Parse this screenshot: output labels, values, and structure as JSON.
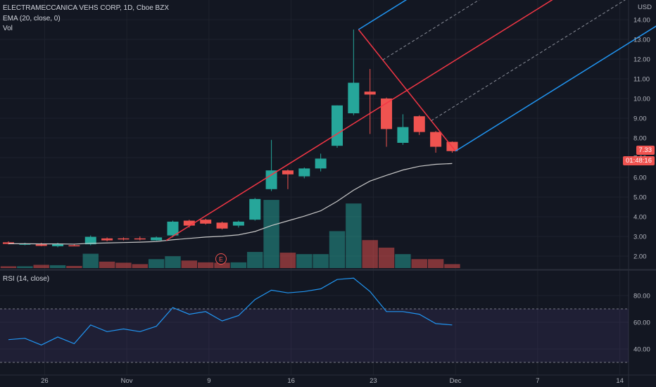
{
  "legend": {
    "title": "ELECTRAMECCANICA VEHS CORP, 1D, Cboe BZX",
    "ema": "EMA (20, close, 0)",
    "vol": "Vol",
    "rsi": "RSI (14, close)"
  },
  "axis": {
    "currency": "USD",
    "price_ticks": [
      "14.00",
      "13.00",
      "12.00",
      "11.00",
      "10.00",
      "9.00",
      "8.00",
      "7.00",
      "6.00",
      "5.00",
      "4.00",
      "3.00",
      "2.00"
    ],
    "rsi_ticks": [
      "80.00",
      "60.00",
      "40.00"
    ],
    "x_ticks": [
      "26",
      "Nov",
      "9",
      "16",
      "23",
      "Dec",
      "7",
      "14"
    ]
  },
  "tags": {
    "last_price": "7.33",
    "countdown": "01:48:16"
  },
  "earnings_marker": "E",
  "colors": {
    "up": "#26a69a",
    "down": "#ef5350",
    "ema": "#c8c8c8",
    "rsi": "#2196f3",
    "pitch_median": "#f23645",
    "pitch_outer": "#2196f3",
    "bg": "#131722"
  },
  "chart_data": {
    "type": "candlestick",
    "candles": [
      {
        "o": 2.7,
        "h": 2.75,
        "l": 2.6,
        "c": 2.62,
        "v": 0.25
      },
      {
        "o": 2.62,
        "h": 2.68,
        "l": 2.55,
        "c": 2.63,
        "v": 0.25
      },
      {
        "o": 2.6,
        "h": 2.68,
        "l": 2.5,
        "c": 2.52,
        "v": 0.45
      },
      {
        "o": 2.5,
        "h": 2.68,
        "l": 2.45,
        "c": 2.63,
        "v": 0.4
      },
      {
        "o": 2.55,
        "h": 2.6,
        "l": 2.5,
        "c": 2.52,
        "v": 0.3
      },
      {
        "o": 2.6,
        "h": 3.05,
        "l": 2.55,
        "c": 2.98,
        "v": 2.0
      },
      {
        "o": 2.9,
        "h": 2.95,
        "l": 2.75,
        "c": 2.8,
        "v": 0.9
      },
      {
        "o": 2.9,
        "h": 2.95,
        "l": 2.8,
        "c": 2.85,
        "v": 0.75
      },
      {
        "o": 2.9,
        "h": 3.0,
        "l": 2.8,
        "c": 2.85,
        "v": 0.55
      },
      {
        "o": 2.8,
        "h": 3.0,
        "l": 2.78,
        "c": 2.95,
        "v": 1.25
      },
      {
        "o": 3.05,
        "h": 3.8,
        "l": 2.95,
        "c": 3.75,
        "v": 1.65
      },
      {
        "o": 3.8,
        "h": 3.85,
        "l": 3.45,
        "c": 3.55,
        "v": 1.05
      },
      {
        "o": 3.85,
        "h": 3.9,
        "l": 3.6,
        "c": 3.65,
        "v": 0.8
      },
      {
        "o": 3.7,
        "h": 3.75,
        "l": 3.35,
        "c": 3.4,
        "v": 0.75
      },
      {
        "o": 3.55,
        "h": 3.8,
        "l": 3.45,
        "c": 3.75,
        "v": 0.8
      },
      {
        "o": 3.85,
        "h": 4.95,
        "l": 3.8,
        "c": 4.9,
        "v": 2.25
      },
      {
        "o": 5.4,
        "h": 7.9,
        "l": 5.3,
        "c": 6.35,
        "v": 9.5
      },
      {
        "o": 6.35,
        "h": 6.4,
        "l": 5.4,
        "c": 6.15,
        "v": 2.15
      },
      {
        "o": 6.05,
        "h": 6.5,
        "l": 5.95,
        "c": 6.45,
        "v": 1.95
      },
      {
        "o": 6.45,
        "h": 7.2,
        "l": 6.3,
        "c": 6.95,
        "v": 1.95
      },
      {
        "o": 7.6,
        "h": 9.65,
        "l": 7.5,
        "c": 9.65,
        "v": 5.15
      },
      {
        "o": 9.25,
        "h": 13.5,
        "l": 9.15,
        "c": 10.8,
        "v": 9.0
      },
      {
        "o": 10.35,
        "h": 11.5,
        "l": 8.2,
        "c": 10.2,
        "v": 3.9
      },
      {
        "o": 10.0,
        "h": 10.05,
        "l": 7.55,
        "c": 8.45,
        "v": 2.85
      },
      {
        "o": 7.75,
        "h": 9.2,
        "l": 7.65,
        "c": 8.55,
        "v": 1.95
      },
      {
        "o": 9.1,
        "h": 9.15,
        "l": 8.15,
        "c": 8.3,
        "v": 1.25
      },
      {
        "o": 8.3,
        "h": 8.35,
        "l": 7.25,
        "c": 7.55,
        "v": 1.25
      },
      {
        "o": 7.8,
        "h": 7.82,
        "l": 7.25,
        "c": 7.33,
        "v": 0.55
      }
    ],
    "ema20": [
      2.63,
      2.63,
      2.62,
      2.62,
      2.61,
      2.65,
      2.67,
      2.69,
      2.71,
      2.74,
      2.83,
      2.9,
      2.97,
      3.01,
      3.08,
      3.25,
      3.55,
      3.79,
      4.03,
      4.3,
      4.78,
      5.35,
      5.81,
      6.1,
      6.37,
      6.56,
      6.66,
      6.7
    ],
    "rsi": [
      47,
      48,
      43,
      49,
      44,
      58,
      53,
      55,
      53,
      57,
      71,
      66,
      68,
      61,
      65,
      77,
      84,
      82,
      83,
      85,
      92,
      93,
      83,
      68,
      68,
      66,
      59,
      58
    ],
    "price_range": [
      1.45,
      14.6
    ],
    "rsi_levels": [
      70,
      30
    ]
  }
}
